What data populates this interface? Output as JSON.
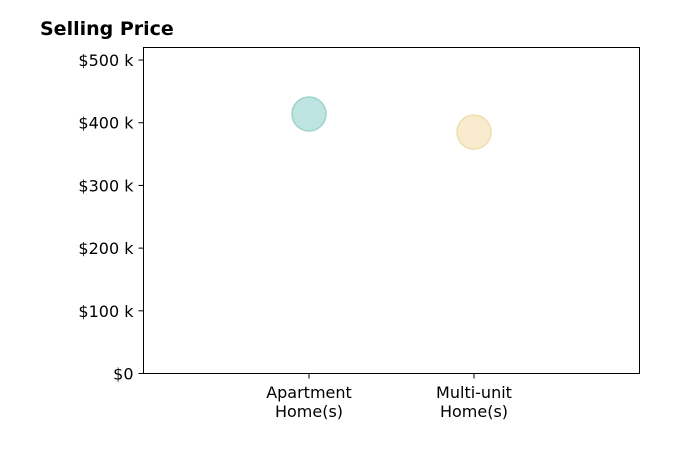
{
  "chart_data": {
    "type": "scatter",
    "title": "Selling Price",
    "xlabel": "",
    "ylabel": "",
    "categories": [
      [
        "Apartment",
        "Home(s)"
      ],
      [
        "Multi-unit",
        "Home(s)"
      ]
    ],
    "values": [
      414000,
      385000
    ],
    "point_colors": [
      "#b2dfdb",
      "#f8e8c6"
    ],
    "point_edge_colors": [
      "#9fd3cc",
      "#f2dcae"
    ],
    "ylim": [
      0,
      520000
    ],
    "y_ticks": [
      0,
      100000,
      200000,
      300000,
      400000,
      500000
    ],
    "y_tick_labels": [
      "$0",
      "$100 k",
      "$200 k",
      "$300 k",
      "$400 k",
      "$500 k"
    ],
    "grid": false,
    "legend": "none"
  }
}
